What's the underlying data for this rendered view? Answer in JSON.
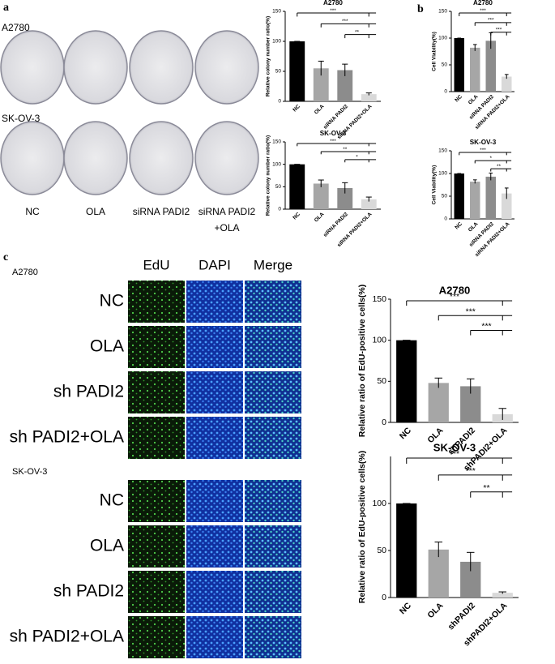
{
  "panel_letters": [
    "a",
    "b",
    "c"
  ],
  "panel_a": {
    "rows": [
      "A2780",
      "SK-OV-3"
    ],
    "columns": [
      [
        "NC"
      ],
      [
        "OLA"
      ],
      [
        "siRNA PADI2"
      ],
      [
        "siRNA PADI2",
        "+OLA"
      ]
    ]
  },
  "panel_c": {
    "channels": [
      "EdU",
      "DAPI",
      "Merge"
    ],
    "groups": [
      {
        "name": "A2780",
        "rows": [
          "NC",
          "OLA",
          "sh PADI2",
          "sh PADI2+OLA"
        ]
      },
      {
        "name": "SK-OV-3",
        "rows": [
          "NC",
          "OLA",
          "sh PADI2",
          "sh PADI2+OLA"
        ]
      }
    ]
  },
  "chart_data": [
    {
      "type": "bar",
      "title": "A2780",
      "ylabel": "Relative colony number ratio(%)",
      "categories": [
        "NC",
        "OLA",
        "siRNA PADI2",
        "siRNA PADI2+OLA"
      ],
      "values": [
        100,
        55,
        52,
        12
      ],
      "errors": [
        0,
        12,
        10,
        2
      ],
      "colors": [
        "#000000",
        "#a6a6a6",
        "#8c8c8c",
        "#d9d9d9"
      ],
      "ylim": [
        0,
        150
      ],
      "yticks": [
        0,
        50,
        100,
        150
      ],
      "significance": [
        "***",
        "***",
        "**"
      ]
    },
    {
      "type": "bar",
      "title": "SK-OV-3",
      "ylabel": "Relative colony number ratio(%)",
      "categories": [
        "NC",
        "OLA",
        "siRNA PADI2",
        "siRNA PADI2+OLA"
      ],
      "values": [
        100,
        57,
        47,
        22
      ],
      "errors": [
        0,
        8,
        12,
        5
      ],
      "colors": [
        "#000000",
        "#a6a6a6",
        "#8c8c8c",
        "#d9d9d9"
      ],
      "ylim": [
        0,
        150
      ],
      "yticks": [
        0,
        50,
        100,
        150
      ],
      "significance": [
        "***",
        "**",
        "*"
      ]
    },
    {
      "type": "bar",
      "title": "A2780",
      "ylabel": "Cell Viability(%)",
      "categories": [
        "NC",
        "OLA",
        "siRNA PADI2",
        "siRNA PADI2+OLA"
      ],
      "values": [
        100,
        82,
        95,
        28
      ],
      "errors": [
        0,
        6,
        15,
        4
      ],
      "colors": [
        "#000000",
        "#a6a6a6",
        "#8c8c8c",
        "#d9d9d9"
      ],
      "ylim": [
        0,
        150
      ],
      "yticks": [
        0,
        50,
        100,
        150
      ],
      "significance": [
        "***",
        "***",
        "***"
      ]
    },
    {
      "type": "bar",
      "title": "SK-OV-3",
      "ylabel": "Cell Viability(%)",
      "categories": [
        "NC",
        "OLA",
        "siRNA PADI2",
        "siRNA PADI2+OLA"
      ],
      "values": [
        100,
        82,
        93,
        56
      ],
      "errors": [
        0,
        4,
        8,
        12
      ],
      "colors": [
        "#000000",
        "#a6a6a6",
        "#8c8c8c",
        "#d9d9d9"
      ],
      "ylim": [
        0,
        150
      ],
      "yticks": [
        0,
        50,
        100,
        150
      ],
      "significance": [
        "***",
        "*",
        "**"
      ]
    },
    {
      "type": "bar",
      "title": "A2780",
      "ylabel": "Relative ratio of EdU-positive cells(%)",
      "categories": [
        "NC",
        "OLA",
        "shPADI2",
        "shPADI2+OLA"
      ],
      "values": [
        100,
        48,
        44,
        10
      ],
      "errors": [
        0,
        6,
        9,
        7
      ],
      "colors": [
        "#000000",
        "#a6a6a6",
        "#8c8c8c",
        "#d9d9d9"
      ],
      "ylim": [
        0,
        150
      ],
      "yticks": [
        0,
        50,
        100,
        150
      ],
      "significance": [
        "***",
        "***",
        "***"
      ]
    },
    {
      "type": "bar",
      "title": "SK-OV-3",
      "ylabel": "Relative ratio of EdU-positive cells(%)",
      "categories": [
        "NC",
        "OLA",
        "shPADI2",
        "shPADI2+OLA"
      ],
      "values": [
        100,
        51,
        38,
        5
      ],
      "errors": [
        0,
        8,
        10,
        1
      ],
      "colors": [
        "#000000",
        "#a6a6a6",
        "#8c8c8c",
        "#d9d9d9"
      ],
      "ylim": [
        0,
        150
      ],
      "yticks": [
        0,
        50,
        100
      ],
      "significance": [
        "***",
        "***",
        "**"
      ]
    }
  ]
}
